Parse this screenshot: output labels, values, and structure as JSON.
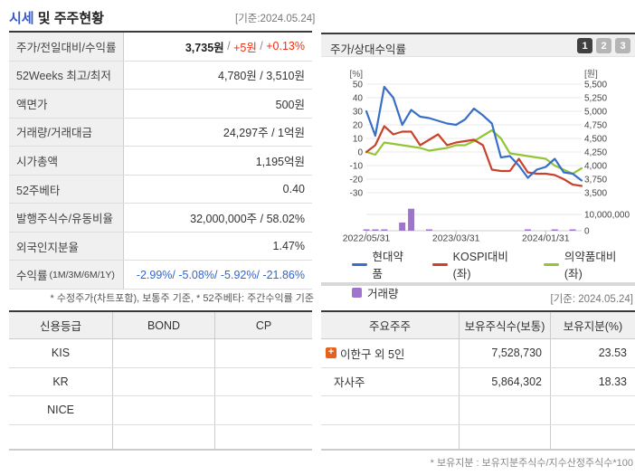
{
  "page": {
    "title_highlight": "시세",
    "title_rest": " 및 주주현황",
    "as_of_top": "[기준:2024.05.24]",
    "as_of_bottom": "[기준: 2024.05.24]"
  },
  "quote_table": {
    "rows": [
      {
        "label": "주가/전일대비/수익률",
        "parts": [
          {
            "text": "3,735원",
            "color": "#222",
            "bold": true
          },
          {
            "text": " / ",
            "color": "#888"
          },
          {
            "text": "+5원",
            "color": "#ee2e10"
          },
          {
            "text": " / ",
            "color": "#888"
          },
          {
            "text": "+0.13%",
            "color": "#ee2e10"
          }
        ]
      },
      {
        "label": "52Weeks 최고/최저",
        "parts": [
          {
            "text": "4,780원 / 3,510원",
            "color": "#333"
          }
        ]
      },
      {
        "label": "액면가",
        "parts": [
          {
            "text": "500원",
            "color": "#333"
          }
        ]
      },
      {
        "label": "거래량/거래대금",
        "parts": [
          {
            "text": "24,297주 / 1억원",
            "color": "#333"
          }
        ]
      },
      {
        "label": "시가총액",
        "parts": [
          {
            "text": "1,195억원",
            "color": "#333"
          }
        ]
      },
      {
        "label": "52주베타",
        "parts": [
          {
            "text": "0.40",
            "color": "#333"
          }
        ]
      },
      {
        "label": "발행주식수/유동비율",
        "parts": [
          {
            "text": "32,000,000주 / 58.02%",
            "color": "#333"
          }
        ]
      },
      {
        "label": "외국인지분율",
        "parts": [
          {
            "text": "1.47%",
            "color": "#333"
          }
        ]
      },
      {
        "label": "수익률",
        "label_sub": " (1M/3M/6M/1Y)",
        "parts": [
          {
            "text": "-2.99%/ -5.08%/ -5.92%/ -21.86%",
            "color": "#3366cc"
          }
        ]
      }
    ],
    "footnote": "* 수정주가(차트포함), 보통주 기준, * 52주베타: 주간수익률 기준"
  },
  "chart_panel": {
    "title": "주가/상대수익률",
    "page_buttons": [
      "1",
      "2",
      "3"
    ],
    "active_button": "1"
  },
  "chart_data": {
    "type": "line",
    "title": "주가/상대수익률",
    "x": [
      "2022/05/31",
      "2022/06/30",
      "2022/07/31",
      "2022/08/31",
      "2022/09/30",
      "2022/10/31",
      "2022/11/30",
      "2022/12/31",
      "2023/01/31",
      "2023/02/28",
      "2023/03/31",
      "2023/04/30",
      "2023/05/31",
      "2023/06/30",
      "2023/07/31",
      "2023/08/31",
      "2023/09/30",
      "2023/10/31",
      "2023/11/30",
      "2023/12/31",
      "2024/01/31",
      "2024/02/29",
      "2024/03/31",
      "2024/04/30",
      "2024/05/24"
    ],
    "x_tick_labels": [
      "2022/05/31",
      "2023/03/31",
      "2024/01/31"
    ],
    "x_tick_indexes": [
      0,
      10,
      20
    ],
    "left_axis": {
      "unit": "[%]",
      "ticks": [
        50,
        40,
        30,
        20,
        10,
        0,
        -10,
        -20,
        -30
      ]
    },
    "right_axis": {
      "unit": "[원]",
      "ticks": [
        5500,
        5250,
        5000,
        4750,
        4500,
        4250,
        4000,
        3750,
        3500
      ]
    },
    "volume_axis": {
      "ticks": [
        10000000,
        0
      ]
    },
    "series": [
      {
        "name": "현대약품",
        "color": "#3a6fc8",
        "axis": "right",
        "unit": "원",
        "values": [
          5000,
          4550,
          5450,
          5250,
          4750,
          5025,
          4900,
          4875,
          4825,
          4775,
          4750,
          4850,
          5050,
          4925,
          4775,
          4150,
          4175,
          4000,
          3775,
          3925,
          3975,
          4125,
          3875,
          3850,
          3725
        ]
      },
      {
        "name": "KOSPI대비(좌)",
        "color": "#c8432b",
        "axis": "left",
        "unit": "%",
        "values": [
          0,
          5,
          19,
          13,
          15,
          15,
          5,
          9,
          13,
          5,
          7,
          8,
          9,
          5,
          -13,
          -14,
          -14,
          -5,
          -15,
          -16,
          -16,
          -17,
          -20,
          -24,
          -25
        ]
      },
      {
        "name": "의약품대비(좌)",
        "color": "#94c535",
        "axis": "left",
        "unit": "%",
        "values": [
          0,
          -2,
          7,
          6,
          5,
          4,
          3,
          1,
          2,
          3,
          5,
          5,
          8,
          12,
          16,
          10,
          -1,
          -2,
          -3,
          -4,
          -5,
          -10,
          -13,
          -16,
          -12
        ]
      }
    ],
    "volume": {
      "name": "거래량",
      "color": "#9e74cc",
      "values": [
        300000,
        400000,
        300000,
        0,
        5000000,
        13500000,
        0,
        400000,
        0,
        0,
        0,
        0,
        0,
        0,
        0,
        0,
        0,
        0,
        400000,
        0,
        0,
        500000,
        0,
        300000,
        0
      ]
    }
  },
  "credit_table": {
    "headers": [
      "신용등급",
      "BOND",
      "CP"
    ],
    "rows": [
      [
        "KIS",
        "",
        ""
      ],
      [
        "KR",
        "",
        ""
      ],
      [
        "NICE",
        "",
        ""
      ]
    ]
  },
  "shareholder_table": {
    "headers": [
      "주요주주",
      "보유주식수(보통)",
      "보유지분(%)"
    ],
    "rows": [
      {
        "name": "이한구 외 5인",
        "expandable": true,
        "shares": "7,528,730",
        "ratio": "23.53"
      },
      {
        "name": "자사주",
        "expandable": false,
        "shares": "5,864,302",
        "ratio": "18.33"
      }
    ],
    "empty_rows": 2,
    "footnote": "* 보유지분 : 보유지분주식수/지수산정주식수*100"
  }
}
